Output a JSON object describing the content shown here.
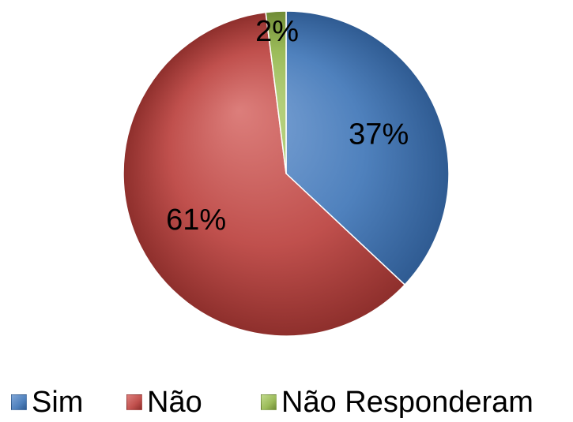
{
  "chart_data": {
    "type": "pie",
    "title": "",
    "start_angle_deg": 0,
    "direction": "clockwise",
    "slices": [
      {
        "label": "Sim",
        "value": 37,
        "display": "37%",
        "color": "#4F81BD",
        "color_light": "#7fa5d6",
        "color_dark": "#2f5b92"
      },
      {
        "label": "Não",
        "value": 61,
        "display": "61%",
        "color": "#C0504D",
        "color_light": "#dc7e7b",
        "color_dark": "#8e2f2c"
      },
      {
        "label": "Não Responderam",
        "value": 2,
        "display": "2%",
        "color": "#9BBB59",
        "color_light": "#c0d98c",
        "color_dark": "#6f8b36"
      }
    ],
    "legend_position": "bottom"
  }
}
